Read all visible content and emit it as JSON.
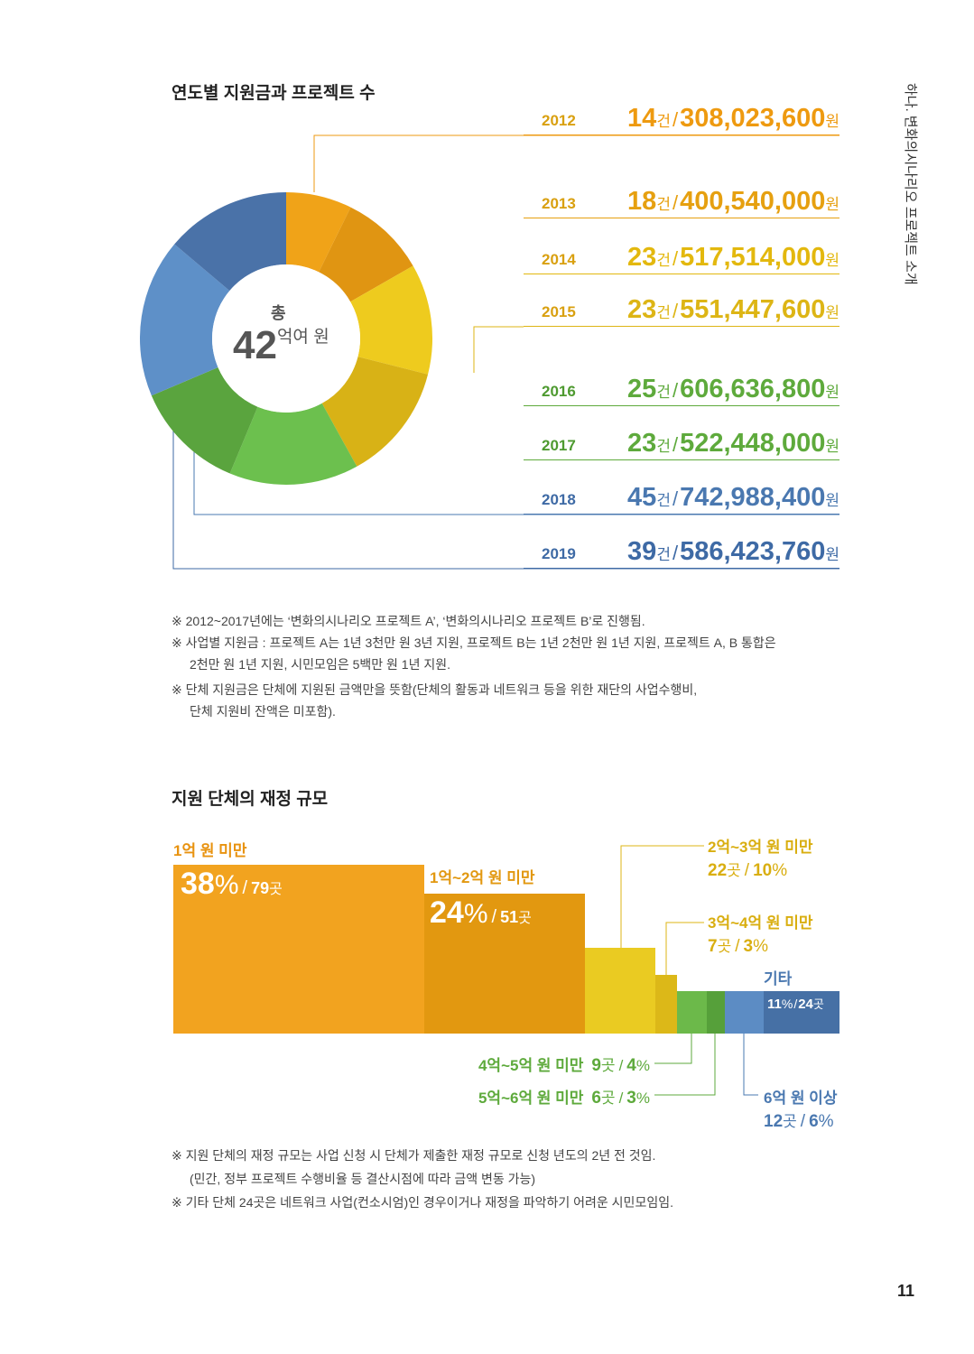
{
  "side_title": "하나. 변화의시나리오 프로젝트 소개",
  "page_number": "11",
  "section1": {
    "title": "연도별 지원금과 프로젝트 수",
    "center_top": "총",
    "center_num": "42",
    "center_unit": "억여 원",
    "rows": [
      {
        "year": "2012",
        "count": "14",
        "amount": "308,023,600",
        "color": "#EE9A10"
      },
      {
        "year": "2013",
        "count": "18",
        "amount": "400,540,000",
        "color": "#E6A010"
      },
      {
        "year": "2014",
        "count": "23",
        "amount": "517,514,000",
        "color": "#E3B80E"
      },
      {
        "year": "2015",
        "count": "23",
        "amount": "551,447,600",
        "color": "#DDB515"
      },
      {
        "year": "2016",
        "count": "25",
        "amount": "606,636,800",
        "color": "#5EAA3C"
      },
      {
        "year": "2017",
        "count": "23",
        "amount": "522,448,000",
        "color": "#5EAA3C"
      },
      {
        "year": "2018",
        "count": "45",
        "amount": "742,988,400",
        "color": "#4A78B0"
      },
      {
        "year": "2019",
        "count": "39",
        "amount": "586,423,760",
        "color": "#3E6AA5"
      }
    ],
    "unit_count": "건",
    "unit_won": "원",
    "sep": "/",
    "notes": [
      "※ 2012~2017년에는 ‘변화의시나리오 프로젝트 A’, ‘변화의시나리오 프로젝트 B’로 진행됨.",
      "※ 사업별 지원금 : 프로젝트 A는 1년 3천만 원 3년 지원, 프로젝트 B는 1년 2천만 원 1년 지원, 프로젝트 A, B 통합은",
      "2천만 원 1년 지원, 시민모임은 5백만 원 1년 지원.",
      "※ 단체 지원금은 단체에 지원된 금액만을 뜻함(단체의 활동과 네트워크 등을 위한 재단의 사업수행비,",
      "단체 지원비 잔액은 미포함)."
    ]
  },
  "section2": {
    "title": "지원 단체의 재정 규모",
    "categories": [
      {
        "label": "1억 원 미만",
        "pct": "38",
        "count": "79",
        "color": "#F2A31F",
        "label_color": "#E8920E"
      },
      {
        "label": "1억~2억 원 미만",
        "pct": "24",
        "count": "51",
        "color": "#E29810",
        "label_color": "#E29810"
      },
      {
        "label": "2억~3억 원 미만",
        "pct": "10",
        "count": "22",
        "color": "#EACB22",
        "label_color": "#D9AE10"
      },
      {
        "label": "3억~4억 원 미만",
        "pct": "3",
        "count": "7",
        "color": "#DCB818",
        "label_color": "#D9AE10"
      },
      {
        "label": "4억~5억 원 미만",
        "pct": "4",
        "count": "9",
        "color": "#6CB94A",
        "label_color": "#5EAA3C"
      },
      {
        "label": "5억~6억 원 미만",
        "pct": "3",
        "count": "6",
        "color": "#56A03A",
        "label_color": "#5EAA3C"
      },
      {
        "label": "6억 원 이상",
        "pct": "6",
        "count": "12",
        "color": "#5C8CC4",
        "label_color": "#4A78B0"
      },
      {
        "label": "기타",
        "pct": "11",
        "count": "24",
        "color": "#4670A5",
        "label_color": "#4A78B0"
      }
    ],
    "pct_sign": "%",
    "place_unit": "곳",
    "sep": "/",
    "notes": [
      "※ 지원 단체의 재정 규모는 사업 신청 시 단체가 제출한 재정 규모로 신청 년도의 2년 전 것임.",
      "(민간, 정부 프로젝트 수행비율 등 결산시점에 따라 금액 변동 가능)",
      "※ 기타 단체 24곳은 네트워크 사업(컨소시엄)인 경우이거나 재정을 파악하기 어려운 시민모임임."
    ]
  }
}
